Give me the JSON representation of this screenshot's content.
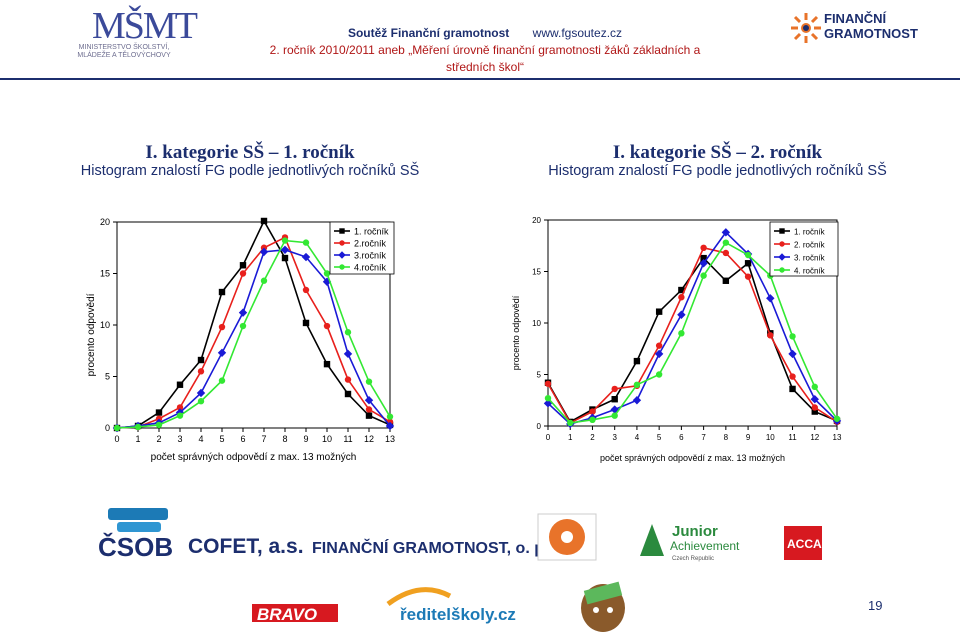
{
  "header": {
    "ministry_lines": [
      "MINISTERSTVO ŠKOLSTVÍ,",
      "MLÁDEŽE A TĚLOVÝCHOVY"
    ],
    "ministry_mark": "MŠMT",
    "line1_left": "Soutěž Finanční gramotnost",
    "line1_right": "www.fgsoutez.cz",
    "line2": "2. ročník 2010/2011 aneb „Měření úrovně finanční gramotnosti žáků základních a středních škol“",
    "fg_logo_lines": [
      "FINANČNÍ",
      "GRAMOTNOST"
    ]
  },
  "left_title": {
    "line1": "I. kategorie SŠ – 1. ročník",
    "line2": "Histogram znalostí FG podle jednotlivých ročníků SŠ"
  },
  "right_title": {
    "line1": "I. kategorie SŠ – 2. ročník",
    "line2": "Histogram znalostí FG podle jednotlivých ročníků SŠ"
  },
  "colors": {
    "s1": "#000000",
    "s2": "#e8201c",
    "s3": "#1a1ad6",
    "s4": "#33e833",
    "navy": "#1c2e6e"
  },
  "chart_data": [
    {
      "type": "line",
      "title": "",
      "xlabel": "počet správných odpovědí z max. 13 možných",
      "ylabel": "procento odpovědí",
      "x": [
        0,
        1,
        2,
        3,
        4,
        5,
        6,
        7,
        8,
        9,
        10,
        11,
        12,
        13
      ],
      "xlim": [
        0,
        13
      ],
      "ylim": [
        0,
        20
      ],
      "yticks": [
        0,
        5,
        10,
        15,
        20
      ],
      "legend": "top-right",
      "series": [
        {
          "name": "1. ročník",
          "values": [
            0,
            0.2,
            1.5,
            4.2,
            6.6,
            13.2,
            15.8,
            20.1,
            16.5,
            10.2,
            6.2,
            3.3,
            1.2,
            0.3
          ]
        },
        {
          "name": "2.ročník",
          "values": [
            0,
            0.1,
            0.9,
            2.0,
            5.5,
            9.8,
            15.0,
            17.5,
            18.5,
            13.4,
            9.9,
            4.7,
            1.8,
            0.6
          ]
        },
        {
          "name": "3.ročník",
          "values": [
            0,
            0.2,
            0.5,
            1.5,
            3.4,
            7.3,
            11.2,
            17.1,
            17.3,
            16.6,
            14.2,
            7.2,
            2.7,
            0.2
          ]
        },
        {
          "name": "4.ročník",
          "values": [
            0,
            0.1,
            0.3,
            1.2,
            2.6,
            4.6,
            9.9,
            14.3,
            18.2,
            18.0,
            15.0,
            9.3,
            4.5,
            1.1
          ]
        }
      ]
    },
    {
      "type": "line",
      "title": "",
      "xlabel": "počet správných odpovědí z max. 13 možných",
      "ylabel": "procento odpovědí",
      "x": [
        0,
        1,
        2,
        3,
        4,
        5,
        6,
        7,
        8,
        9,
        10,
        11,
        12,
        13
      ],
      "xlim": [
        0,
        13
      ],
      "ylim": [
        0,
        20
      ],
      "yticks": [
        0,
        5,
        10,
        15,
        20
      ],
      "legend": "top-right",
      "series": [
        {
          "name": "1. ročník",
          "values": [
            4.2,
            0.4,
            1.6,
            2.6,
            6.3,
            11.1,
            13.2,
            16.3,
            14.1,
            15.8,
            9.0,
            3.6,
            1.4,
            0.5
          ]
        },
        {
          "name": "2. ročník",
          "values": [
            4.1,
            0.3,
            1.4,
            3.6,
            3.9,
            7.8,
            12.5,
            17.3,
            16.8,
            14.5,
            8.8,
            4.8,
            1.8,
            0.4
          ]
        },
        {
          "name": "3. ročník",
          "values": [
            2.2,
            0.2,
            0.8,
            1.6,
            2.5,
            7.0,
            10.8,
            15.8,
            18.8,
            16.7,
            12.4,
            7.0,
            2.6,
            0.5
          ]
        },
        {
          "name": "4. ročník",
          "values": [
            2.7,
            0.3,
            0.6,
            1.0,
            4.0,
            5.0,
            9.0,
            14.6,
            17.8,
            16.6,
            14.6,
            8.7,
            3.8,
            0.7
          ]
        }
      ]
    }
  ],
  "sponsors": [
    "ČSOB",
    "COFET, a.s.",
    "FINANČNÍ GRAMOTNOST, o. p. s.",
    "Junior",
    "Achievement",
    "Czech Republic",
    "ACCA",
    "BRAVO",
    "ředitelškoly.cz"
  ],
  "page_number": "19"
}
